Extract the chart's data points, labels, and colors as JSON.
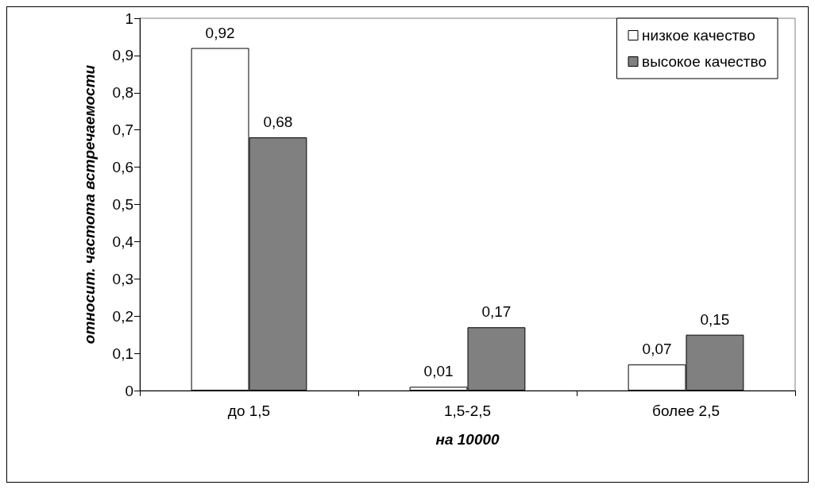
{
  "chart_data": {
    "type": "bar",
    "categories": [
      "до 1,5",
      "1,5-2,5",
      "более 2,5"
    ],
    "series": [
      {
        "name": "низкое качество",
        "color": "#ffffff",
        "values": [
          0.92,
          0.01,
          0.07
        ],
        "value_labels": [
          "0,92",
          "0,01",
          "0,07"
        ]
      },
      {
        "name": "высокое качество",
        "color": "#808080",
        "values": [
          0.68,
          0.17,
          0.15
        ],
        "value_labels": [
          "0,68",
          "0,17",
          "0,15"
        ]
      }
    ],
    "xlabel": "на 10000",
    "ylabel": "относит. частота встречаемости",
    "ylim": [
      0,
      1
    ],
    "yticks": [
      0,
      {
        "value": 0.1,
        "label": "0,1"
      },
      {
        "value": 0.2,
        "label": "0,2"
      },
      {
        "value": 0.3,
        "label": "0,3"
      },
      {
        "value": 0.4,
        "label": "0,4"
      },
      {
        "value": 0.5,
        "label": "0,5"
      },
      {
        "value": 0.6,
        "label": "0,6"
      },
      {
        "value": 0.7,
        "label": "0,7"
      },
      {
        "value": 0.8,
        "label": "0,8"
      },
      {
        "value": 0.9,
        "label": "0,9"
      },
      1
    ],
    "grid": false,
    "legend": "top right"
  }
}
